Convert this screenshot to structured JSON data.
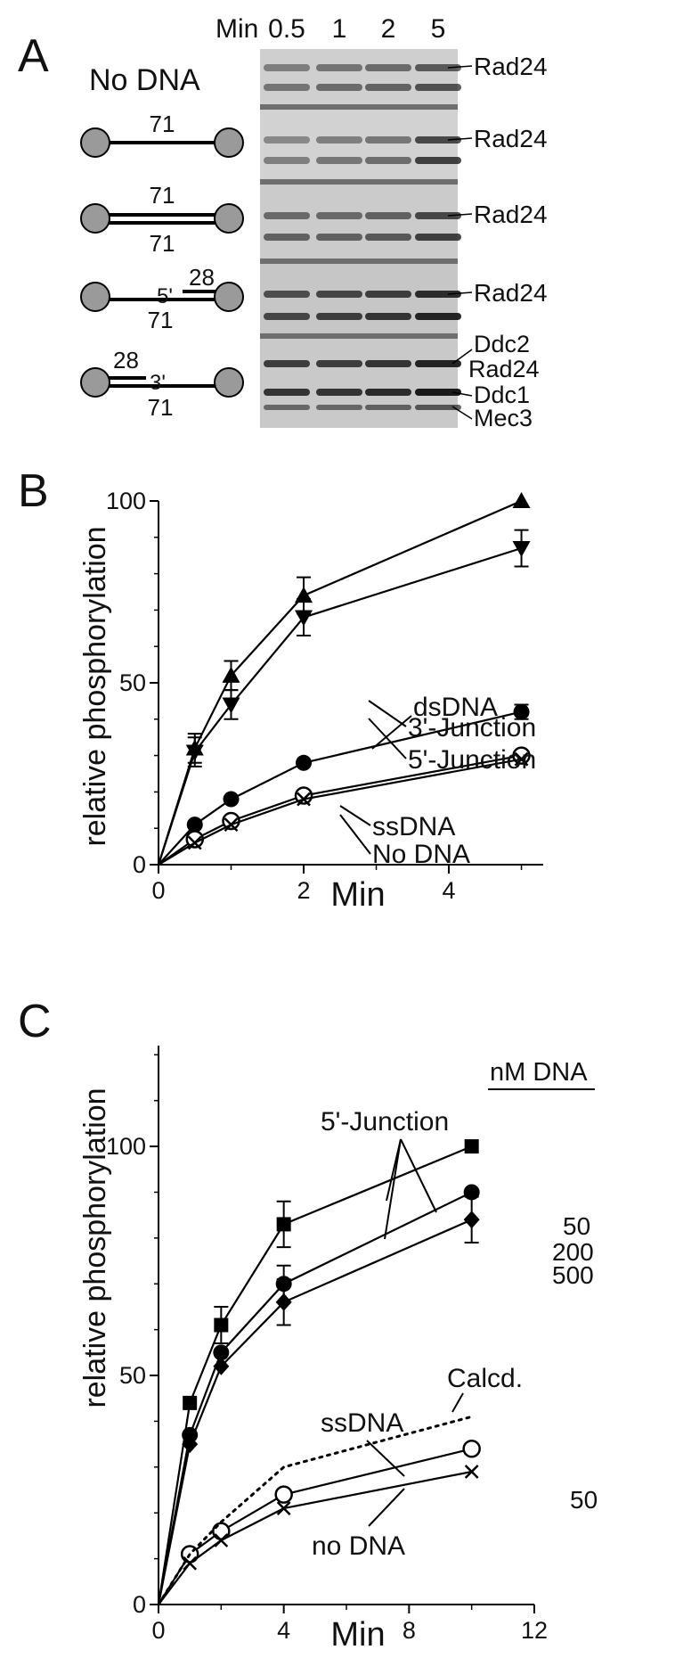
{
  "panel_a": {
    "label": "A",
    "time_header": "Min",
    "times": [
      "0.5",
      "1",
      "2",
      "5"
    ],
    "rows": [
      {
        "title": "No DNA",
        "bands": [
          "Rad24"
        ]
      },
      {
        "top_len": "71",
        "bands": [
          "Rad24"
        ]
      },
      {
        "top_len": "71",
        "bottom_len": "71",
        "bands": [
          "Rad24"
        ]
      },
      {
        "primer_len": "28",
        "primer_end": "5'",
        "bottom_len": "71",
        "bands": [
          "Rad24"
        ]
      },
      {
        "primer_len": "28",
        "primer_end": "3'",
        "bottom_len": "71",
        "bands": [
          "Ddc2",
          "Rad24",
          "Ddc1",
          "Mec3"
        ]
      }
    ]
  },
  "chart_data": [
    {
      "panel": "B",
      "type": "line",
      "xlabel": "Min",
      "ylabel": "relative phosphorylation",
      "xlim": [
        0,
        5.3
      ],
      "ylim": [
        0,
        100
      ],
      "x_ticks": [
        0,
        2,
        4
      ],
      "y_ticks": [
        0,
        50,
        100
      ],
      "grid": false,
      "series": [
        {
          "name": "3'-Junction",
          "marker": "triangle-up",
          "x": [
            0,
            0.5,
            1,
            2,
            5
          ],
          "y": [
            0,
            32,
            52,
            74,
            100
          ],
          "err": [
            0,
            4,
            4,
            5,
            0
          ]
        },
        {
          "name": "5'-Junction",
          "marker": "triangle-down",
          "x": [
            0,
            0.5,
            1,
            2,
            5
          ],
          "y": [
            0,
            31,
            44,
            68,
            87
          ],
          "err": [
            0,
            4,
            4,
            5,
            5
          ]
        },
        {
          "name": "dsDNA",
          "marker": "circle-filled",
          "x": [
            0,
            0.5,
            1,
            2,
            5
          ],
          "y": [
            0,
            11,
            18,
            28,
            42
          ],
          "err": [
            0,
            0,
            0,
            0,
            2
          ]
        },
        {
          "name": "ssDNA",
          "marker": "circle-open",
          "x": [
            0,
            0.5,
            1,
            2,
            5
          ],
          "y": [
            0,
            7,
            12,
            19,
            30
          ],
          "err": [
            0,
            0,
            0,
            0,
            0
          ]
        },
        {
          "name": "No DNA",
          "marker": "cross",
          "x": [
            0,
            0.5,
            1,
            2,
            5
          ],
          "y": [
            0,
            6,
            11,
            18,
            29
          ],
          "err": [
            0,
            0,
            0,
            0,
            0
          ]
        }
      ]
    },
    {
      "panel": "C",
      "type": "line",
      "xlabel": "Min",
      "ylabel": "relative phosphorylation",
      "legend_header": "nM DNA",
      "xlim": [
        0,
        12
      ],
      "ylim": [
        0,
        122
      ],
      "x_ticks": [
        0,
        4,
        8,
        12
      ],
      "y_ticks": [
        0,
        50,
        100
      ],
      "grid": false,
      "annotations": [
        "5'-Junction",
        "Calcd.",
        "ssDNA",
        "no DNA"
      ],
      "series": [
        {
          "name": "5'-Junction",
          "conc": "50",
          "marker": "square",
          "x": [
            0,
            1,
            2,
            4,
            10
          ],
          "y": [
            0,
            44,
            61,
            83,
            100
          ],
          "err": [
            0,
            0,
            4,
            5,
            0
          ]
        },
        {
          "name": "5'-Junction",
          "conc": "200",
          "marker": "circle-filled",
          "x": [
            0,
            1,
            2,
            4,
            10
          ],
          "y": [
            0,
            37,
            55,
            70,
            90
          ],
          "err": [
            0,
            0,
            0,
            4,
            0
          ]
        },
        {
          "name": "5'-Junction",
          "conc": "500",
          "marker": "diamond",
          "x": [
            0,
            1,
            2,
            4,
            10
          ],
          "y": [
            0,
            35,
            52,
            66,
            84
          ],
          "err": [
            0,
            0,
            0,
            5,
            5
          ]
        },
        {
          "name": "ssDNA",
          "conc": "50",
          "marker": "circle-open",
          "x": [
            0,
            1,
            2,
            4,
            10
          ],
          "y": [
            0,
            11,
            16,
            24,
            34
          ],
          "err": [
            0,
            0,
            0,
            0,
            0
          ]
        },
        {
          "name": "no DNA",
          "marker": "cross",
          "x": [
            0,
            1,
            2,
            4,
            10
          ],
          "y": [
            0,
            9,
            14,
            21,
            29
          ],
          "err": [
            0,
            0,
            0,
            0,
            0
          ]
        },
        {
          "name": "Calcd.",
          "marker": "none",
          "dashed": true,
          "x": [
            0,
            1,
            2,
            4,
            10
          ],
          "y": [
            0,
            11,
            18,
            30,
            41
          ],
          "err": [
            0,
            0,
            0,
            0,
            0
          ]
        }
      ]
    }
  ]
}
